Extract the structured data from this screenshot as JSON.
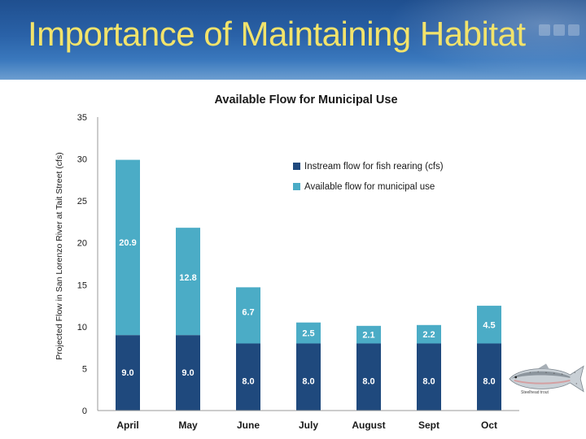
{
  "slide": {
    "title": "Importance of Maintaining Habitat",
    "image_caption": "Steelhead trout"
  },
  "chart_data": {
    "type": "bar",
    "stacked": true,
    "title": "Available Flow for Municipal Use",
    "xlabel": "",
    "ylabel": "Projected Flow in San Lorenzo River at Tait Street (cfs)",
    "ylim": [
      0,
      35
    ],
    "yticks": [
      0,
      5,
      10,
      15,
      20,
      25,
      30,
      35
    ],
    "categories": [
      "April",
      "May",
      "June",
      "July",
      "August",
      "Sept",
      "Oct"
    ],
    "series": [
      {
        "name": "Instream flow for fish rearing (cfs)",
        "color": "#1f497d",
        "values": [
          9,
          9,
          8,
          8,
          8,
          8,
          8
        ],
        "labels": [
          "9.0",
          "9.0",
          "8.0",
          "8.0",
          "8.0",
          "8.0",
          "8.0"
        ]
      },
      {
        "name": "Available flow for municipal use",
        "color": "#4bacc6",
        "values": [
          20.9,
          12.8,
          6.7,
          2.5,
          2.1,
          2.2,
          4.5
        ],
        "labels": [
          "20.9",
          "12.8",
          "6.7",
          "2.5",
          "2.1",
          "2.2",
          "4.5"
        ]
      }
    ],
    "legend_position": "top-right",
    "grid": false
  }
}
